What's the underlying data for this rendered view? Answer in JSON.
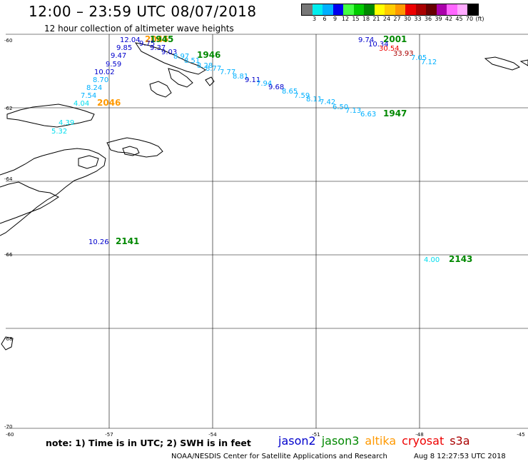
{
  "header": {
    "title": "12:00 – 23:59 UTC 08/07/2018",
    "subtitle": "12 hour collection of altimeter wave heights"
  },
  "colorbar": {
    "colors": [
      "#777777",
      "#00eeee",
      "#00b0ff",
      "#0000ee",
      "#44ff44",
      "#00cc00",
      "#008800",
      "#ffff00",
      "#ffcc00",
      "#ff9900",
      "#ee0000",
      "#aa0000",
      "#660000",
      "#aa00aa",
      "#ff66ff",
      "#ffaaff",
      "#000000"
    ],
    "labels": [
      "3",
      "6",
      "9",
      "12",
      "15",
      "18",
      "21",
      "24",
      "27",
      "30",
      "33",
      "36",
      "39",
      "42",
      "45",
      "70",
      "(ft)"
    ]
  },
  "axes": {
    "lat_labels": [
      "-60",
      "-62",
      "-64",
      "-66",
      "-68",
      "-70"
    ],
    "lon_labels": [
      "-60",
      "-57",
      "-54",
      "-51",
      "-48",
      "-45"
    ]
  },
  "observations": [
    {
      "text": "12.04",
      "color": "#0000cc"
    },
    {
      "text": "2045",
      "color": "#ff9900",
      "kind": "time"
    },
    {
      "text": "1945",
      "color": "#008800",
      "kind": "time"
    },
    {
      "text": "9.75",
      "color": "#0000cc"
    },
    {
      "text": "9.85",
      "color": "#0000cc"
    },
    {
      "text": "9.37",
      "color": "#0000cc"
    },
    {
      "text": "9.47",
      "color": "#0000cc"
    },
    {
      "text": "9.03",
      "color": "#0000cc"
    },
    {
      "text": "9.59",
      "color": "#0000cc"
    },
    {
      "text": "8.97",
      "color": "#00b0ff"
    },
    {
      "text": "1946",
      "color": "#008800",
      "kind": "time"
    },
    {
      "text": "10.02",
      "color": "#0000cc"
    },
    {
      "text": "8.51",
      "color": "#00b0ff"
    },
    {
      "text": "8.28",
      "color": "#00b0ff"
    },
    {
      "text": "8.77",
      "color": "#00b0ff"
    },
    {
      "text": "8.70",
      "color": "#00b0ff"
    },
    {
      "text": "7.77",
      "color": "#00b0ff"
    },
    {
      "text": "8.81",
      "color": "#00b0ff"
    },
    {
      "text": "8.24",
      "color": "#00b0ff"
    },
    {
      "text": "9.11",
      "color": "#0000cc"
    },
    {
      "text": "7.94",
      "color": "#00b0ff"
    },
    {
      "text": "7.54",
      "color": "#00b0ff"
    },
    {
      "text": "9.68",
      "color": "#0000cc"
    },
    {
      "text": "8.65",
      "color": "#00b0ff"
    },
    {
      "text": "4.04",
      "color": "#00ddee"
    },
    {
      "text": "2046",
      "color": "#ff9900",
      "kind": "time"
    },
    {
      "text": "7.59",
      "color": "#00b0ff"
    },
    {
      "text": "8.11",
      "color": "#00b0ff"
    },
    {
      "text": "7.42",
      "color": "#00b0ff"
    },
    {
      "text": "6.50",
      "color": "#00b0ff"
    },
    {
      "text": "7.13",
      "color": "#00b0ff"
    },
    {
      "text": "6.63",
      "color": "#00b0ff"
    },
    {
      "text": "1947",
      "color": "#008800",
      "kind": "time"
    },
    {
      "text": "4.39",
      "color": "#00ddee"
    },
    {
      "text": "5.32",
      "color": "#00ddee"
    },
    {
      "text": "9.74",
      "color": "#0000cc"
    },
    {
      "text": "2001",
      "color": "#008800",
      "kind": "time"
    },
    {
      "text": "10.34",
      "color": "#0000cc"
    },
    {
      "text": "30.54",
      "color": "#ee0000"
    },
    {
      "text": "33.93",
      "color": "#aa0000"
    },
    {
      "text": "7.05",
      "color": "#00b0ff"
    },
    {
      "text": "7.12",
      "color": "#00b0ff"
    },
    {
      "text": "10.26",
      "color": "#0000cc"
    },
    {
      "text": "2141",
      "color": "#008800",
      "kind": "time"
    },
    {
      "text": "4.00",
      "color": "#00ddee"
    },
    {
      "text": "2143",
      "color": "#008800",
      "kind": "time"
    }
  ],
  "footer": {
    "note": "note:  1) Time is in UTC;  2) SWH is in feet",
    "legend": [
      {
        "name": "jason2",
        "color": "#0000cc"
      },
      {
        "name": "jason3",
        "color": "#008800"
      },
      {
        "name": "altika",
        "color": "#ff9900"
      },
      {
        "name": "cryosat",
        "color": "#ee0000"
      },
      {
        "name": "s3a",
        "color": "#aa0000"
      }
    ],
    "credit": "NOAA/NESDIS Center for Satellite Applications and Research",
    "timestamp": "Aug  8 12:27:53 UTC 2018"
  }
}
